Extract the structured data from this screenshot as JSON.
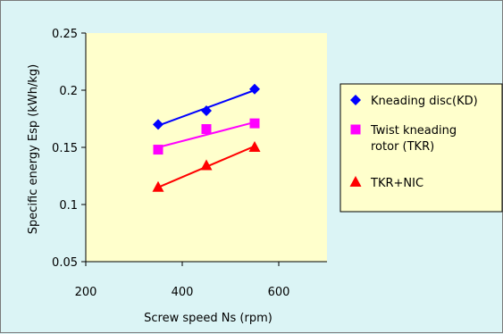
{
  "chart_data": {
    "type": "line",
    "title": "",
    "xlabel": "Screw speed Ns (rpm)",
    "ylabel": "Specific energy Esp (kWh/kg)",
    "xlim": [
      200,
      700
    ],
    "ylim": [
      0.05,
      0.25
    ],
    "xticks": [
      200,
      400,
      600
    ],
    "xtick_labels": [
      "200",
      "400",
      "600"
    ],
    "yticks": [
      0.05,
      0.1,
      0.15,
      0.2,
      0.25
    ],
    "ytick_labels": [
      "0.05",
      "0.1",
      "0.15",
      "0.2",
      "0.25"
    ],
    "grid": false,
    "legend_position": "right",
    "plot_background": "#ffffcc",
    "series": [
      {
        "name": "Kneading disc(KD)",
        "marker": "diamond",
        "color": "#0000ff",
        "x": [
          350,
          450,
          550
        ],
        "y": [
          0.17,
          0.182,
          0.201
        ],
        "fit": [
          0.169,
          0.2
        ]
      },
      {
        "name": "Twist kneading rotor (TKR)",
        "marker": "square",
        "color": "#ff00ff",
        "x": [
          350,
          450,
          550
        ],
        "y": [
          0.148,
          0.166,
          0.171
        ],
        "fit": [
          0.15,
          0.172
        ]
      },
      {
        "name": "TKR+NIC",
        "marker": "triangle",
        "color": "#ff0000",
        "x": [
          350,
          450,
          550
        ],
        "y": [
          0.115,
          0.134,
          0.15
        ],
        "fit": [
          0.115,
          0.151
        ]
      }
    ],
    "legend_lines": [
      [
        "Kneading disc(KD)"
      ],
      [
        "Twist kneading",
        "rotor (TKR)"
      ],
      [
        "TKR+NIC"
      ]
    ]
  }
}
